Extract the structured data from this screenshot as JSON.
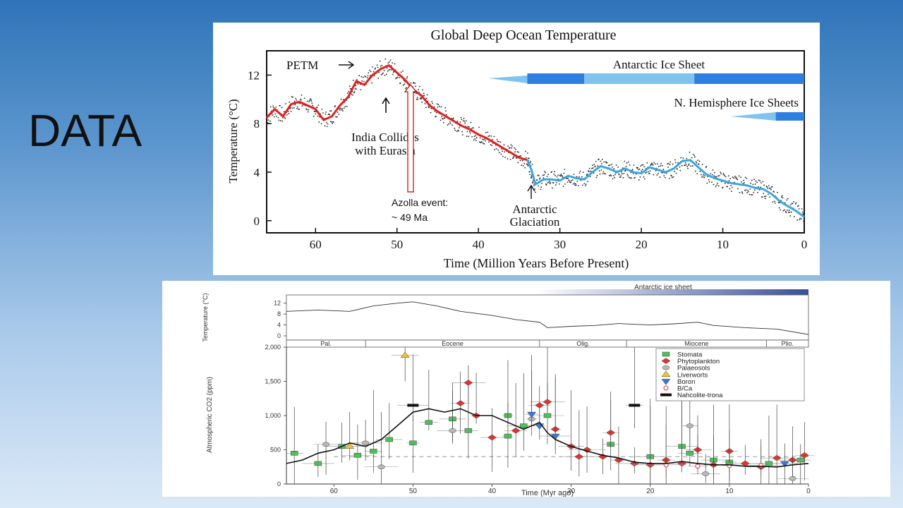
{
  "slide": {
    "title": "DATA"
  },
  "chart_data": [
    {
      "type": "line",
      "title": "Global Deep Ocean Temperature",
      "xlabel": "Time (Million Years Before Present)",
      "ylabel": "Temperature (°C)",
      "xlim": [
        66,
        0
      ],
      "ylim": [
        -1,
        14
      ],
      "xticks": [
        60,
        50,
        40,
        30,
        20,
        10,
        0
      ],
      "yticks": [
        0,
        4,
        8,
        12
      ],
      "series": [
        {
          "color": "#e02020",
          "x": [
            66,
            65,
            64,
            63,
            62,
            61,
            60,
            59,
            58,
            57,
            56,
            55,
            54,
            53,
            52,
            51,
            50,
            49,
            48,
            47,
            46,
            45,
            44,
            43,
            42,
            41,
            40,
            39,
            38,
            37,
            36,
            35,
            34
          ],
          "y": [
            8.5,
            9.2,
            8.6,
            9.6,
            9.8,
            9.5,
            9.2,
            8.3,
            8.6,
            9.5,
            10.2,
            11.5,
            11.2,
            12.0,
            12.5,
            12.8,
            12.2,
            11.6,
            10.8,
            10.3,
            9.5,
            9.0,
            8.6,
            8.2,
            7.8,
            7.5,
            7.1,
            6.8,
            6.4,
            6.0,
            5.6,
            5.2,
            5.0
          ]
        },
        {
          "color": "#3aa6e0",
          "x": [
            34,
            33.5,
            33,
            32,
            31,
            30,
            29,
            28,
            27,
            26,
            25,
            24,
            23,
            22,
            21,
            20,
            19,
            18,
            17,
            16,
            15,
            14,
            13,
            12,
            11,
            10,
            9,
            8,
            7,
            6,
            5,
            4,
            3,
            2,
            1,
            0
          ],
          "y": [
            5.0,
            4.2,
            3.0,
            3.4,
            3.4,
            3.3,
            3.7,
            3.5,
            3.4,
            4.0,
            4.5,
            4.3,
            4.0,
            4.3,
            4.0,
            3.9,
            4.4,
            4.2,
            4.0,
            4.3,
            4.9,
            5.0,
            4.4,
            3.8,
            3.5,
            3.3,
            3.1,
            3.0,
            2.9,
            2.7,
            2.6,
            2.2,
            1.6,
            1.2,
            0.8,
            0.3
          ]
        }
      ],
      "annotations": [
        {
          "text": "PETM",
          "x": 55.5,
          "y": 12.4
        },
        {
          "text": "India Collides",
          "x": 50.5,
          "y": 9.5
        },
        {
          "text": "with Eurasia",
          "x": 50.5,
          "y": 9.5
        },
        {
          "text": "Antarctic",
          "x": 33.5,
          "y": 2.0
        },
        {
          "text": "Glaciation",
          "x": 33.5,
          "y": 2.0
        },
        {
          "text": "Azolla event:",
          "x": 49,
          "y": 12.6
        },
        {
          "text": "~ 49 Ma",
          "x": 49,
          "y": 12.6
        }
      ],
      "ice_sheets": [
        {
          "label": "Antarctic Ice Sheet",
          "start": 34,
          "end": 0
        },
        {
          "label": "N. Hemisphere Ice Sheets",
          "start": 8,
          "end": 0
        }
      ]
    },
    {
      "type": "scatter",
      "xlabel": "Time (Myr ago)",
      "ylabel": "Atmospheric CO2 (ppm)",
      "xlim": [
        66,
        0
      ],
      "ylim": [
        0,
        2000
      ],
      "xticks": [
        60,
        50,
        40,
        30,
        20,
        10,
        0
      ],
      "yticks": [
        0,
        500,
        1000,
        1500,
        2000
      ],
      "ytick_labels": [
        "0",
        "500",
        "1,000",
        "1,500",
        "2,000"
      ],
      "temperature_inset": {
        "ylabel": "Temperature (°C)",
        "yticks": [
          0,
          4,
          8,
          12
        ],
        "top_band": "Antarctic ice sheet",
        "x": [
          66,
          62,
          58,
          55,
          52,
          50,
          47,
          44,
          40,
          37,
          34,
          33,
          30,
          27,
          24,
          20,
          17,
          14,
          12,
          8,
          4,
          0
        ],
        "y": [
          9,
          9.5,
          9,
          11,
          12,
          12.5,
          11,
          9,
          7.5,
          6,
          5,
          3,
          3.5,
          3.8,
          4.5,
          4,
          4.4,
          5,
          3.8,
          3,
          2.5,
          0.5
        ]
      },
      "epochs": [
        "Pal.",
        "Eocene",
        "Olig.",
        "Miocene",
        "Plio."
      ],
      "legend": [
        "Stomata",
        "Phytoplankton",
        "Palaeosols",
        "Liverworts",
        "Boron",
        "B/Ca",
        "Nahcolite-trona"
      ],
      "legend_position": "top-right",
      "points": [
        {
          "proxy": "Stomata",
          "x": 65,
          "y": 450
        },
        {
          "proxy": "Stomata",
          "x": 62,
          "y": 300
        },
        {
          "proxy": "Stomata",
          "x": 59,
          "y": 550
        },
        {
          "proxy": "Stomata",
          "x": 57,
          "y": 420
        },
        {
          "proxy": "Stomata",
          "x": 55,
          "y": 480
        },
        {
          "proxy": "Stomata",
          "x": 53,
          "y": 650
        },
        {
          "proxy": "Stomata",
          "x": 50,
          "y": 600
        },
        {
          "proxy": "Stomata",
          "x": 48,
          "y": 900
        },
        {
          "proxy": "Stomata",
          "x": 45,
          "y": 950
        },
        {
          "proxy": "Stomata",
          "x": 43,
          "y": 780
        },
        {
          "proxy": "Stomata",
          "x": 38,
          "y": 1000
        },
        {
          "proxy": "Stomata",
          "x": 38,
          "y": 700
        },
        {
          "proxy": "Stomata",
          "x": 36,
          "y": 850
        },
        {
          "proxy": "Stomata",
          "x": 33,
          "y": 1000
        },
        {
          "proxy": "Stomata",
          "x": 25,
          "y": 580
        },
        {
          "proxy": "Stomata",
          "x": 20,
          "y": 400
        },
        {
          "proxy": "Stomata",
          "x": 16,
          "y": 550
        },
        {
          "proxy": "Stomata",
          "x": 15,
          "y": 450
        },
        {
          "proxy": "Stomata",
          "x": 12,
          "y": 350
        },
        {
          "proxy": "Stomata",
          "x": 10,
          "y": 320
        },
        {
          "proxy": "Stomata",
          "x": 5,
          "y": 300
        },
        {
          "proxy": "Stomata",
          "x": 1,
          "y": 350
        },
        {
          "proxy": "Phytoplankton",
          "x": 44,
          "y": 1180
        },
        {
          "proxy": "Phytoplankton",
          "x": 43,
          "y": 1480
        },
        {
          "proxy": "Phytoplankton",
          "x": 42,
          "y": 1000
        },
        {
          "proxy": "Phytoplankton",
          "x": 40,
          "y": 680
        },
        {
          "proxy": "Phytoplankton",
          "x": 37,
          "y": 780
        },
        {
          "proxy": "Phytoplankton",
          "x": 34,
          "y": 1150
        },
        {
          "proxy": "Phytoplankton",
          "x": 33,
          "y": 1200
        },
        {
          "proxy": "Phytoplankton",
          "x": 32,
          "y": 800
        },
        {
          "proxy": "Phytoplankton",
          "x": 30,
          "y": 550
        },
        {
          "proxy": "Phytoplankton",
          "x": 29,
          "y": 400
        },
        {
          "proxy": "Phytoplankton",
          "x": 28,
          "y": 500
        },
        {
          "proxy": "Phytoplankton",
          "x": 26,
          "y": 400
        },
        {
          "proxy": "Phytoplankton",
          "x": 25,
          "y": 750
        },
        {
          "proxy": "Phytoplankton",
          "x": 24,
          "y": 350
        },
        {
          "proxy": "Phytoplankton",
          "x": 22,
          "y": 300
        },
        {
          "proxy": "Phytoplankton",
          "x": 20,
          "y": 280
        },
        {
          "proxy": "Phytoplankton",
          "x": 18,
          "y": 350
        },
        {
          "proxy": "Phytoplankton",
          "x": 16,
          "y": 300
        },
        {
          "proxy": "Phytoplankton",
          "x": 14,
          "y": 500
        },
        {
          "proxy": "Phytoplankton",
          "x": 12,
          "y": 280
        },
        {
          "proxy": "Phytoplankton",
          "x": 10,
          "y": 480
        },
        {
          "proxy": "Phytoplankton",
          "x": 8,
          "y": 300
        },
        {
          "proxy": "Phytoplankton",
          "x": 6,
          "y": 250
        },
        {
          "proxy": "Phytoplankton",
          "x": 4,
          "y": 380
        },
        {
          "proxy": "Phytoplankton",
          "x": 2,
          "y": 350
        },
        {
          "proxy": "Phytoplankton",
          "x": 0.5,
          "y": 420
        },
        {
          "proxy": "Palaeosols",
          "x": 61,
          "y": 580
        },
        {
          "proxy": "Palaeosols",
          "x": 56,
          "y": 600
        },
        {
          "proxy": "Palaeosols",
          "x": 54,
          "y": 250
        },
        {
          "proxy": "Palaeosols",
          "x": 45,
          "y": 780
        },
        {
          "proxy": "Palaeosols",
          "x": 35,
          "y": 950
        },
        {
          "proxy": "Palaeosols",
          "x": 15,
          "y": 850
        },
        {
          "proxy": "Palaeosols",
          "x": 13,
          "y": 150
        },
        {
          "proxy": "Palaeosols",
          "x": 2,
          "y": 80
        },
        {
          "proxy": "Liverworts",
          "x": 58,
          "y": 550
        },
        {
          "proxy": "Liverworts",
          "x": 51,
          "y": 1880
        },
        {
          "proxy": "Boron",
          "x": 35,
          "y": 1020
        },
        {
          "proxy": "Boron",
          "x": 34,
          "y": 850
        },
        {
          "proxy": "Boron",
          "x": 32,
          "y": 700
        },
        {
          "proxy": "Boron",
          "x": 3,
          "y": 300
        },
        {
          "proxy": "B/Ca",
          "x": 18,
          "y": 280
        },
        {
          "proxy": "B/Ca",
          "x": 14,
          "y": 260
        },
        {
          "proxy": "B/Ca",
          "x": 10,
          "y": 270
        },
        {
          "proxy": "B/Ca",
          "x": 6,
          "y": 270
        },
        {
          "proxy": "Nahcolite-trona",
          "x": 50,
          "y": 1150
        },
        {
          "proxy": "Nahcolite-trona",
          "x": 22,
          "y": 1150
        }
      ],
      "trend": {
        "x": [
          66,
          64,
          62,
          60,
          58,
          56,
          54,
          52,
          50,
          48,
          46,
          44,
          42,
          40,
          38,
          36,
          34,
          33,
          32,
          30,
          28,
          26,
          24,
          22,
          20,
          18,
          16,
          14,
          12,
          10,
          8,
          6,
          4,
          2,
          0
        ],
        "y": [
          300,
          350,
          450,
          500,
          600,
          550,
          650,
          850,
          1050,
          1100,
          1050,
          1100,
          1000,
          1000,
          900,
          800,
          900,
          750,
          650,
          550,
          480,
          420,
          380,
          320,
          300,
          300,
          330,
          300,
          280,
          280,
          260,
          260,
          250,
          280,
          300
        ]
      },
      "reference_line": 400
    }
  ]
}
